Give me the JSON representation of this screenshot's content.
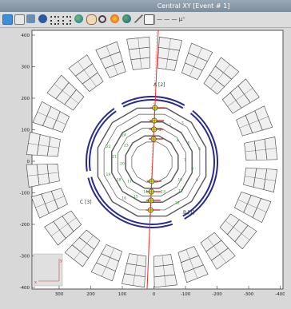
{
  "window": {
    "title": "Central XY  [Event # 1]"
  },
  "toolbar": {
    "icons": [
      "pointer-icon",
      "print-icon",
      "save-icon",
      "palette-icon",
      "fit-icon",
      "zoom-fit-icon",
      "world-icon",
      "hand-icon",
      "magnifier-icon",
      "color-icon",
      "globe-icon",
      "wand-icon",
      "info-icon"
    ],
    "legend_text": "— — — μ⁺"
  },
  "plot": {
    "y_ticks": [
      "400",
      "300",
      "200",
      "100",
      "0",
      "-100",
      "-200",
      "-300",
      "-400"
    ],
    "x_ticks": [
      "300",
      "200",
      "100",
      "0",
      "-100",
      "-200",
      "-300",
      "-400"
    ],
    "sector_labels": {
      "a": "A [2]",
      "b": "B [1]",
      "c": "C [3]"
    },
    "mini_axis": {
      "x": "x",
      "y": "y"
    },
    "layer_labels_right": [
      "1",
      "2",
      "3",
      "4",
      "5",
      "6",
      "7",
      "8",
      "9",
      "10",
      "11",
      "12",
      "13"
    ],
    "layer_labels_left": [
      "14",
      "15",
      "16",
      "17",
      "18",
      "19",
      "20",
      "21",
      "22",
      "23",
      "24"
    ],
    "colors": {
      "track": "#e83030",
      "hit": "#e8e020",
      "coil": "#2a2a8c",
      "chamber": "#555555",
      "label_green": "#2a8a2a"
    }
  }
}
